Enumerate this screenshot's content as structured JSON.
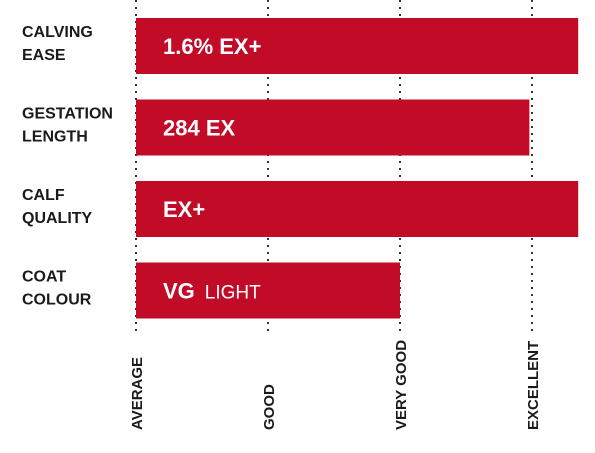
{
  "chart_data": {
    "type": "bar",
    "orientation": "horizontal",
    "scale_labels": [
      "AVERAGE",
      "GOOD",
      "VERY GOOD",
      "EXCELLENT"
    ],
    "xlim": [
      0,
      3.35
    ],
    "grid": true,
    "bar_color": "#c20b27",
    "bars": [
      {
        "label_lines": [
          "CALVING",
          "EASE"
        ],
        "value": 3.35,
        "bar_text": "1.6% EX+",
        "bar_subtext": ""
      },
      {
        "label_lines": [
          "GESTATION",
          "LENGTH"
        ],
        "value": 2.98,
        "bar_text": "284 EX",
        "bar_subtext": ""
      },
      {
        "label_lines": [
          "CALF",
          "QUALITY"
        ],
        "value": 3.35,
        "bar_text": "EX+",
        "bar_subtext": ""
      },
      {
        "label_lines": [
          "COAT",
          "COLOUR"
        ],
        "value": 2.0,
        "bar_text": "VG",
        "bar_subtext": "LIGHT"
      }
    ]
  }
}
